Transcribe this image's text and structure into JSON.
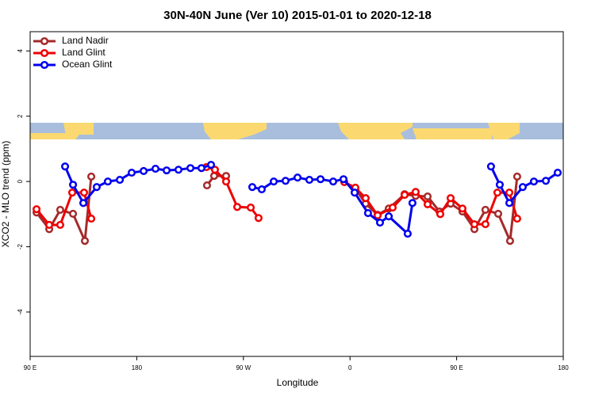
{
  "chart_data": {
    "type": "line",
    "title": "30N-40N June (Ver 10)   2015-01-01 to 2020-12-18",
    "xlabel": "Longitude",
    "ylabel": "XCO2 - MLO trend (ppm)",
    "xlim": [
      90,
      540
    ],
    "ylim": [
      -5.36,
      4.59
    ],
    "xticks": [
      {
        "value": 90,
        "label": "90 E"
      },
      180,
      {
        "value": 270,
        "label": "90 W"
      },
      {
        "value": 360,
        "label": "0"
      },
      {
        "value": 450,
        "label": "90 E"
      },
      {
        "value": 540,
        "label": "180"
      }
    ],
    "yticks": [
      -4,
      -2,
      0,
      2,
      4
    ],
    "legend": "upper left",
    "series": [
      {
        "name": "Land Nadir",
        "color": "#a52a2a",
        "x": [
          95.4,
          106.1,
          115.4,
          126.2,
          136.2,
          141.6,
          null,
          239.3,
          245.3,
          255.4,
          null,
          364.5,
          373.2,
          383.3,
          392.7,
          406.1,
          415.4,
          425.5,
          435.5,
          444.9,
          454.9,
          465.0,
          474.3,
          485.1,
          495.1,
          501.1
        ],
        "values": [
          -0.95,
          -1.46,
          -0.87,
          -0.99,
          -1.82,
          0.15,
          null,
          -0.12,
          0.17,
          0.17,
          null,
          -0.22,
          -0.68,
          -1.02,
          -0.83,
          -0.39,
          -0.44,
          -0.46,
          -0.92,
          -0.68,
          -0.92,
          -1.46,
          -0.87,
          -0.99,
          -1.82,
          0.15
        ]
      },
      {
        "name": "Land Glint",
        "color": "#ee0000",
        "x": [
          95.4,
          106.1,
          115.4,
          125.5,
          135.5,
          141.6,
          null,
          238.7,
          246.0,
          255.4,
          264.8,
          276.2,
          282.8,
          null,
          355.2,
          364.5,
          373.2,
          383.3,
          396.0,
          406.1,
          415.4,
          425.5,
          436.2,
          444.9,
          454.9,
          465.0,
          474.3,
          484.4,
          494.5,
          501.1
        ],
        "values": [
          -0.85,
          -1.33,
          -1.33,
          -0.34,
          -0.34,
          -1.14,
          null,
          0.44,
          0.36,
          0.0,
          -0.78,
          -0.8,
          -1.12,
          null,
          -0.02,
          -0.19,
          -0.51,
          -1.04,
          -0.8,
          -0.41,
          -0.32,
          -0.7,
          -1.0,
          -0.51,
          -0.83,
          -1.31,
          -1.31,
          -0.34,
          -0.34,
          -1.14
        ]
      },
      {
        "name": "Ocean Glint",
        "color": "#0000ee",
        "x": [
          119.5,
          126.2,
          134.9,
          146.2,
          155.6,
          165.7,
          175.7,
          185.8,
          195.8,
          205.2,
          215.2,
          225.3,
          234.6,
          242.7,
          null,
          277.5,
          285.5,
          295.6,
          305.6,
          315.7,
          325.7,
          335.1,
          345.8,
          354.5,
          363.9,
          375.2,
          385.3,
          392.7,
          408.7,
          412.7,
          null,
          479.0,
          486.4,
          494.5,
          505.8,
          515.2,
          525.3,
          535.3
        ],
        "values": [
          0.46,
          -0.1,
          -0.66,
          -0.17,
          0.0,
          0.05,
          0.27,
          0.32,
          0.39,
          0.34,
          0.36,
          0.41,
          0.41,
          0.51,
          null,
          -0.17,
          -0.24,
          0.0,
          0.02,
          0.12,
          0.05,
          0.07,
          0.0,
          0.07,
          -0.34,
          -0.97,
          -1.26,
          -1.07,
          -1.6,
          -0.66,
          null,
          0.46,
          -0.1,
          -0.66,
          -0.17,
          0.0,
          0.02,
          0.27
        ]
      }
    ]
  }
}
